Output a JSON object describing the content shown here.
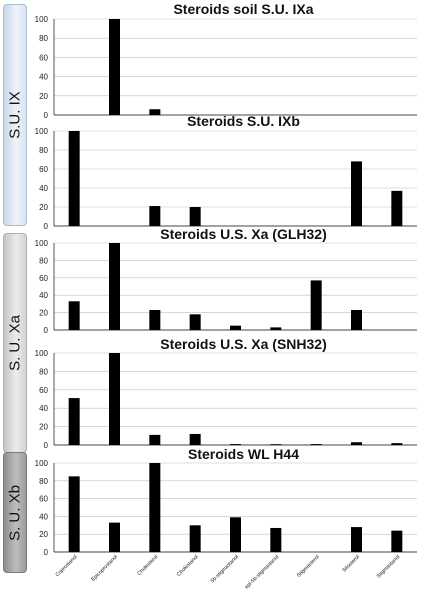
{
  "group_labels": [
    "S.U. IX",
    "S. U. Xa",
    "S. U. Xb"
  ],
  "chart_data": [
    {
      "type": "bar",
      "title": "Steroids soil S.U. IXa",
      "categories": [
        "Coprostanol",
        "Epicoprostanol",
        "Cholesterol",
        "Cholestanol",
        "5b-stigmastanol",
        "epi-5b-stigmastanol",
        "Stigmasterol",
        "Sitosterol",
        "Stigmastanol"
      ],
      "values": [
        null,
        100,
        6,
        null,
        null,
        null,
        null,
        null,
        null
      ],
      "ylim": [
        0,
        100
      ],
      "yticks": [
        0,
        20,
        40,
        60,
        80,
        100
      ],
      "grid": true,
      "xlabel": "",
      "ylabel": ""
    },
    {
      "type": "bar",
      "title": "Steroids S.U. IXb",
      "categories": [
        "Coprostanol",
        "Epicoprostanol",
        "Cholesterol",
        "Cholestanol",
        "5b-stigmastanol",
        "epi-5b-stigmastanol",
        "Stigmasterol",
        "Sitosterol",
        "Stigmastanol"
      ],
      "values": [
        100,
        null,
        21,
        20,
        null,
        null,
        null,
        68,
        37
      ],
      "ylim": [
        0,
        100
      ],
      "yticks": [
        0,
        20,
        40,
        60,
        80,
        100
      ],
      "grid": true,
      "xlabel": "",
      "ylabel": ""
    },
    {
      "type": "bar",
      "title": "Steroids U.S. Xa (GLH32)",
      "categories": [
        "Coprostanol",
        "Epicoprostanol",
        "Cholesterol",
        "Cholestanol",
        "5b-stigmastanol",
        "epi-5b-stigmastanol",
        "Stigmasterol",
        "Sitosterol",
        "Stigmastanol"
      ],
      "values": [
        33,
        100,
        23,
        18,
        5,
        3,
        57,
        23,
        null
      ],
      "ylim": [
        0,
        100
      ],
      "yticks": [
        0,
        20,
        40,
        60,
        80,
        100
      ],
      "grid": true,
      "xlabel": "",
      "ylabel": ""
    },
    {
      "type": "bar",
      "title": "Steroids U.S. Xa (SNH32)",
      "categories": [
        "Coprostanol",
        "Epicoprostanol",
        "Cholesterol",
        "Cholestanol",
        "5b-stigmastanol",
        "epi-5b-stigmastanol",
        "Stigmasterol",
        "Sitosterol",
        "Stigmastanol"
      ],
      "values": [
        51,
        100,
        11,
        12,
        1,
        0.5,
        1,
        3,
        2
      ],
      "ylim": [
        0,
        100
      ],
      "yticks": [
        0,
        20,
        40,
        60,
        80,
        100
      ],
      "grid": true,
      "xlabel": "",
      "ylabel": ""
    },
    {
      "type": "bar",
      "title": "Steroids WL H44",
      "categories": [
        "Coprostanol",
        "Epicoprostanol",
        "Cholesterol",
        "Cholestanol",
        "5b-stigmastanol",
        "epi-5b-stigmastanol",
        "Stigmasterol",
        "Sitosterol",
        "Stigmastanol"
      ],
      "values": [
        85,
        33,
        100,
        30,
        39,
        27,
        null,
        28,
        24
      ],
      "ylim": [
        0,
        100
      ],
      "yticks": [
        0,
        20,
        40,
        60,
        80,
        100
      ],
      "grid": true,
      "xlabel": "",
      "ylabel": "",
      "category_labels": [
        "Coprostanol",
        "Epicoprostanol",
        "Cholesterol",
        "Cholestanol",
        "5b-stigmastanol",
        "epi-5b-stigmastanol",
        "Stigmasterol",
        "Sitosterol",
        "Stigmastanol"
      ]
    }
  ]
}
